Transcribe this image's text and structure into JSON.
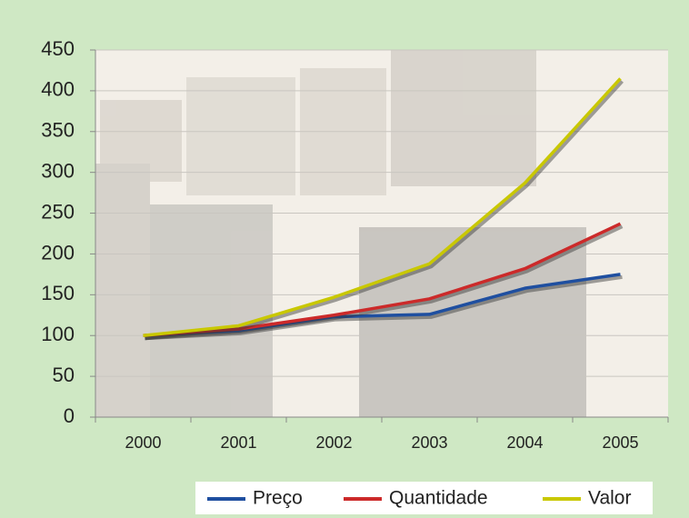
{
  "chart_data": {
    "type": "line",
    "categories": [
      "2000",
      "2001",
      "2002",
      "2003",
      "2004",
      "2005"
    ],
    "series": [
      {
        "name": "Preço",
        "color": "#1f4fa0",
        "values": [
          100,
          106,
          123,
          126,
          158,
          175
        ]
      },
      {
        "name": "Quantidade",
        "color": "#cc2a2a",
        "values": [
          100,
          108,
          125,
          145,
          182,
          237
        ]
      },
      {
        "name": "Valor",
        "color": "#c9c800",
        "values": [
          100,
          112,
          147,
          188,
          287,
          415
        ]
      }
    ],
    "ylim": [
      0,
      450
    ],
    "yticks": [
      0,
      50,
      100,
      150,
      200,
      250,
      300,
      350,
      400,
      450
    ],
    "grid": true
  }
}
